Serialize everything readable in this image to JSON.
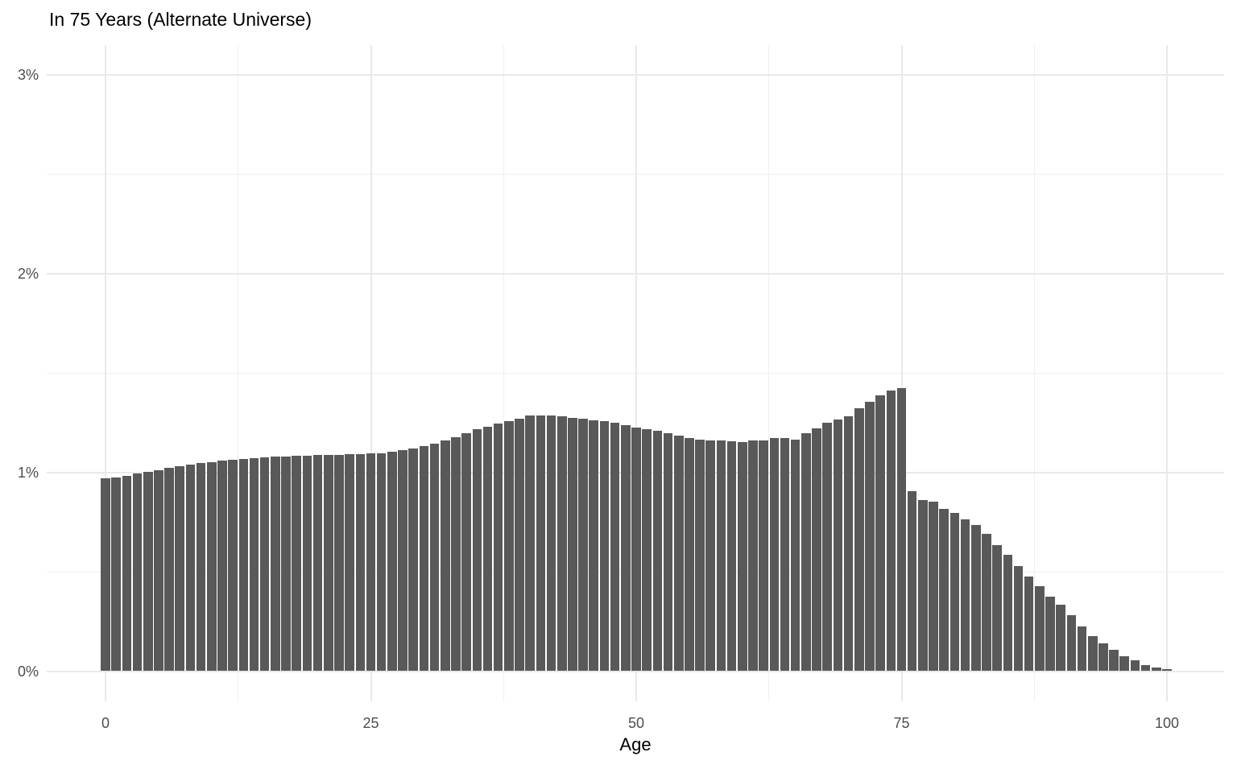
{
  "chart_data": {
    "type": "bar",
    "title": "In 75 Years (Alternate Universe)",
    "xlabel": "Age",
    "ylabel": "",
    "value_unit": "percent_of_population",
    "age_range": {
      "start": 0,
      "end": 100,
      "step": 1
    },
    "values": [
      0.971,
      0.974,
      0.983,
      0.994,
      1.003,
      1.013,
      1.023,
      1.032,
      1.04,
      1.047,
      1.053,
      1.058,
      1.064,
      1.068,
      1.072,
      1.076,
      1.079,
      1.081,
      1.084,
      1.086,
      1.088,
      1.089,
      1.09,
      1.092,
      1.093,
      1.095,
      1.098,
      1.103,
      1.112,
      1.122,
      1.134,
      1.147,
      1.161,
      1.179,
      1.199,
      1.218,
      1.232,
      1.245,
      1.257,
      1.27,
      1.285,
      1.287,
      1.286,
      1.281,
      1.276,
      1.271,
      1.264,
      1.258,
      1.249,
      1.238,
      1.225,
      1.217,
      1.208,
      1.197,
      1.186,
      1.172,
      1.166,
      1.161,
      1.16,
      1.159,
      1.155,
      1.16,
      1.163,
      1.173,
      1.174,
      1.167,
      1.197,
      1.222,
      1.249,
      1.267,
      1.284,
      1.324,
      1.356,
      1.387,
      1.412,
      1.424,
      0.906,
      0.863,
      0.852,
      0.818,
      0.798,
      0.764,
      0.737,
      0.692,
      0.636,
      0.586,
      0.528,
      0.478,
      0.429,
      0.376,
      0.334,
      0.282,
      0.224,
      0.176,
      0.139,
      0.106,
      0.075,
      0.055,
      0.032,
      0.017,
      0.01
    ],
    "x_axis": {
      "label": "Age",
      "tick_values": [
        0,
        25,
        50,
        75,
        100
      ],
      "tick_labels": [
        "0",
        "25",
        "50",
        "75",
        "100"
      ],
      "minor_tick_values": [
        12.5,
        37.5,
        62.5,
        87.5
      ]
    },
    "y_axis": {
      "tick_values": [
        0,
        1,
        2,
        3
      ],
      "tick_labels": [
        "0%",
        "1%",
        "2%",
        "3%"
      ],
      "minor_tick_values": [
        0.5,
        1.5,
        2.5
      ]
    },
    "xlim": [
      -0.5,
      100.5
    ],
    "ylim": [
      0,
      3
    ],
    "grid": true,
    "legend": "none",
    "bar_color": "#595959",
    "grid_major_color": "#e9e9e9",
    "grid_minor_color": "#f0f0f0",
    "tick_label_color": "#4d4d4d",
    "title_color": "#000000",
    "background_color": "#ffffff"
  }
}
